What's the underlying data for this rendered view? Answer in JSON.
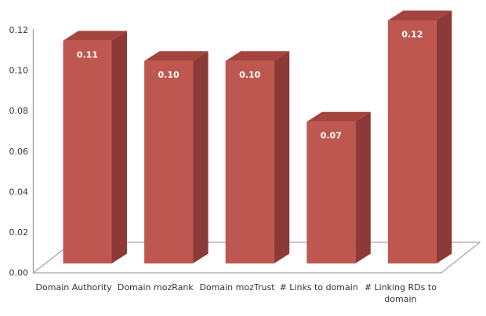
{
  "chart_data": {
    "type": "bar",
    "style": "3d-column",
    "title": "",
    "xlabel": "",
    "ylabel": "",
    "categories": [
      "Domain Authority",
      "Domain mozRank",
      "Domain mozTrust",
      "# Links to domain",
      "# Linking RDs to domain"
    ],
    "values": [
      0.11,
      0.1,
      0.1,
      0.07,
      0.12
    ],
    "data_labels": [
      "0.11",
      "0.10",
      "0.10",
      "0.07",
      "0.12"
    ],
    "ylim": [
      0,
      0.12
    ],
    "y_tick_values": [
      0,
      0.02,
      0.04,
      0.06,
      0.08,
      0.1,
      0.12
    ],
    "y_tick_labels": [
      "0.00",
      "0.02",
      "0.04",
      "0.06",
      "0.08",
      "0.10",
      "0.12"
    ],
    "grid": false,
    "legend": false,
    "colors": {
      "background": "#ffffff",
      "bar_front": "#BF5751",
      "bar_top": "#A5443E",
      "bar_side": "#8C3A37",
      "data_label_text": "#ffffff",
      "axis_line": "#A6A6A6",
      "tick_text": "#333333",
      "category_text": "#333333"
    }
  }
}
